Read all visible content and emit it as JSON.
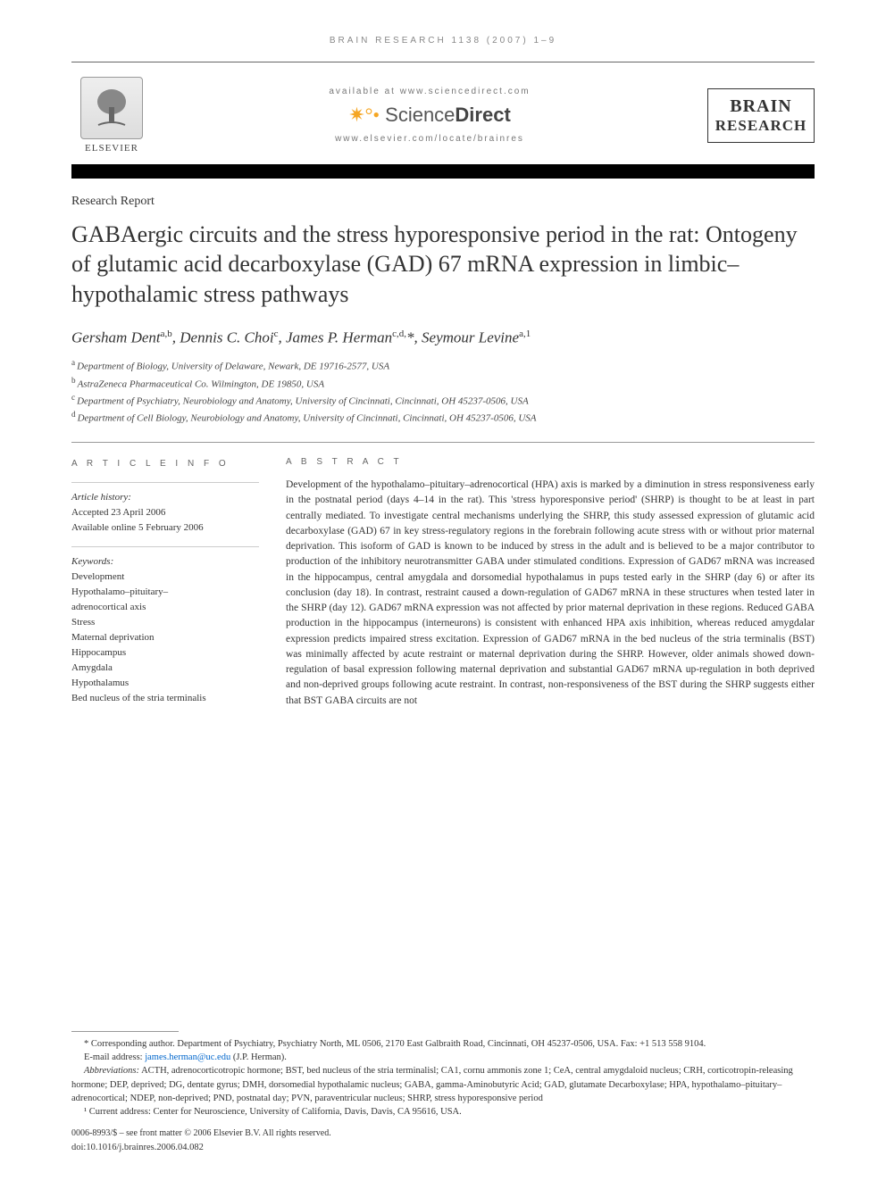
{
  "running_head": "BRAIN RESEARCH 1138 (2007) 1–9",
  "masthead": {
    "publisher_name": "ELSEVIER",
    "available_text": "available at www.sciencedirect.com",
    "sd_name_light": "Science",
    "sd_name_bold": "Direct",
    "journal_url": "www.elsevier.com/locate/brainres",
    "journal_logo_line1": "BRAIN",
    "journal_logo_line2": "RESEARCH"
  },
  "section_label": "Research Report",
  "title": "GABAergic circuits and the stress hyporesponsive period in the rat: Ontogeny of glutamic acid decarboxylase (GAD) 67 mRNA expression in limbic–hypothalamic stress pathways",
  "authors_html": "Gersham Dent<sup>a,b</sup>, Dennis C. Choi<sup>c</sup>, James P. Herman<sup>c,d,</sup>*, Seymour Levine<sup>a,1</sup>",
  "affiliations": [
    {
      "sup": "a",
      "text": "Department of Biology, University of Delaware, Newark, DE 19716-2577, USA"
    },
    {
      "sup": "b",
      "text": "AstraZeneca Pharmaceutical Co. Wilmington, DE 19850, USA"
    },
    {
      "sup": "c",
      "text": "Department of Psychiatry, Neurobiology and Anatomy, University of Cincinnati, Cincinnati, OH 45237-0506, USA"
    },
    {
      "sup": "d",
      "text": "Department of Cell Biology, Neurobiology and Anatomy, University of Cincinnati, Cincinnati, OH 45237-0506, USA"
    }
  ],
  "article_info": {
    "heading": "A R T I C L E  I N F O",
    "history_label": "Article history:",
    "accepted": "Accepted 23 April 2006",
    "online": "Available online 5 February 2006",
    "keywords_label": "Keywords:",
    "keywords": [
      "Development",
      "Hypothalamo–pituitary–",
      "adrenocortical axis",
      "Stress",
      "Maternal deprivation",
      "Hippocampus",
      "Amygdala",
      "Hypothalamus",
      "Bed nucleus of the stria terminalis"
    ]
  },
  "abstract": {
    "heading": "A B S T R A C T",
    "body": "Development of the hypothalamo–pituitary–adrenocortical (HPA) axis is marked by a diminution in stress responsiveness early in the postnatal period (days 4–14 in the rat). This 'stress hyporesponsive period' (SHRP) is thought to be at least in part centrally mediated. To investigate central mechanisms underlying the SHRP, this study assessed expression of glutamic acid decarboxylase (GAD) 67 in key stress-regulatory regions in the forebrain following acute stress with or without prior maternal deprivation. This isoform of GAD is known to be induced by stress in the adult and is believed to be a major contributor to production of the inhibitory neurotransmitter GABA under stimulated conditions. Expression of GAD67 mRNA was increased in the hippocampus, central amygdala and dorsomedial hypothalamus in pups tested early in the SHRP (day 6) or after its conclusion (day 18). In contrast, restraint caused a down-regulation of GAD67 mRNA in these structures when tested later in the SHRP (day 12). GAD67 mRNA expression was not affected by prior maternal deprivation in these regions. Reduced GABA production in the hippocampus (interneurons) is consistent with enhanced HPA axis inhibition, whereas reduced amygdalar expression predicts impaired stress excitation. Expression of GAD67 mRNA in the bed nucleus of the stria terminalis (BST) was minimally affected by acute restraint or maternal deprivation during the SHRP. However, older animals showed down-regulation of basal expression following maternal deprivation and substantial GAD67 mRNA up-regulation in both deprived and non-deprived groups following acute restraint. In contrast, non-responsiveness of the BST during the SHRP suggests either that BST GABA circuits are not"
  },
  "footnotes": {
    "corresponding": "* Corresponding author. Department of Psychiatry, Psychiatry North, ML 0506, 2170 East Galbraith Road, Cincinnati, OH 45237-0506, USA. Fax: +1 513 558 9104.",
    "email_label": "E-mail address:",
    "email": "james.herman@uc.edu",
    "email_author": "(J.P. Herman).",
    "abbrev_label": "Abbreviations:",
    "abbrev_text": "ACTH, adrenocorticotropic hormone; BST, bed nucleus of the stria terminalisl; CA1, cornu ammonis zone 1; CeA, central amygdaloid nucleus; CRH, corticotropin-releasing hormone; DEP, deprived; DG, dentate gyrus; DMH, dorsomedial hypothalamic nucleus; GABA, gamma-Aminobutyric Acid; GAD, glutamate Decarboxylase; HPA, hypothalamo–pituitary–adrenocortical; NDEP, non-deprived; PND, postnatal day; PVN, paraventricular nucleus; SHRP, stress hyporesponsive period",
    "note1": "¹ Current address: Center for Neuroscience, University of California, Davis, Davis, CA 95616, USA.",
    "copyright": "0006-8993/$ – see front matter © 2006 Elsevier B.V. All rights reserved.",
    "doi": "doi:10.1016/j.brainres.2006.04.082"
  },
  "colors": {
    "text": "#333333",
    "muted": "#777777",
    "rule": "#999999",
    "black": "#000000",
    "link": "#0066cc",
    "sd_orange": "#f5a623"
  }
}
